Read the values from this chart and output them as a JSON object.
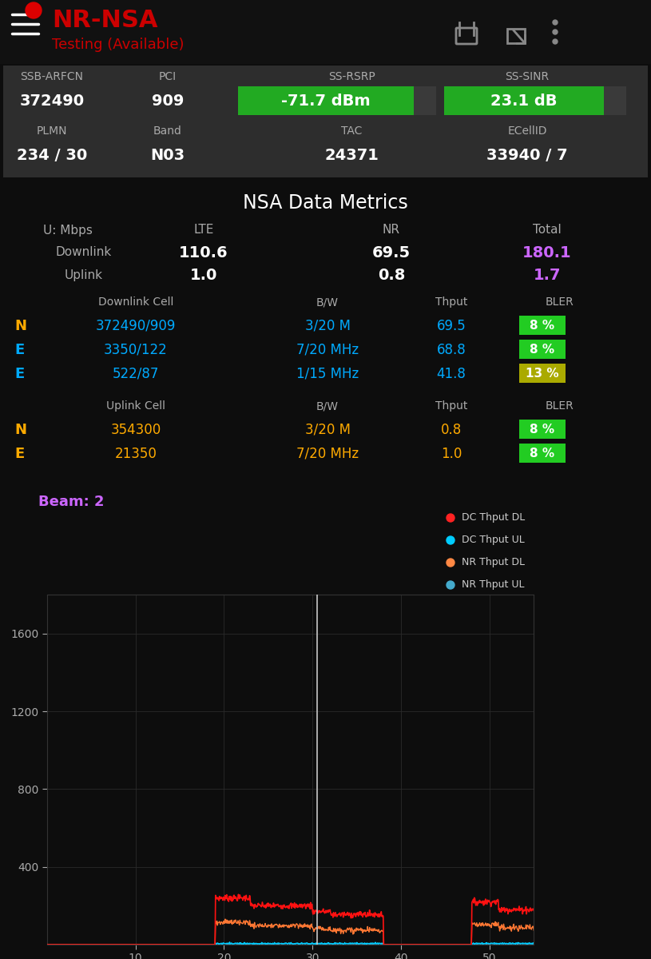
{
  "bg_color": "#0d0d0d",
  "panel_bg": "#2a2a2a",
  "title": "NR-NSA",
  "subtitle": "Testing (Available)",
  "title_color": "#cc0000",
  "subtitle_color": "#cc0000",
  "ssb_arfcn_label": "SSB-ARFCN",
  "ssb_arfcn_value": "372490",
  "pci_label": "PCI",
  "pci_value": "909",
  "ss_rsrp_label": "SS-RSRP",
  "ss_rsrp_value": "-71.7 dBm",
  "ss_rsrp_bg": "#22aa22",
  "ss_sinr_label": "SS-SINR",
  "ss_sinr_value": "23.1 dB",
  "ss_sinr_bg": "#22aa22",
  "plmn_label": "PLMN",
  "plmn_value": "234 / 30",
  "band_label": "Band",
  "band_value": "N03",
  "tac_label": "TAC",
  "tac_value": "24371",
  "ecellid_label": "ECellID",
  "ecellid_value": "33940 / 7",
  "section_title": "NSA Data Metrics",
  "col_headers": [
    "U: Mbps",
    "LTE",
    "NR",
    "Total"
  ],
  "downlink_label": "Downlink",
  "downlink_lte": "110.6",
  "downlink_nr": "69.5",
  "downlink_total": "180.1",
  "uplink_label": "Uplink",
  "uplink_lte": "1.0",
  "uplink_nr": "0.8",
  "uplink_total": "1.7",
  "total_color": "#cc66ff",
  "dl_cell_header": [
    "Downlink Cell",
    "B/W",
    "Thput",
    "BLER"
  ],
  "dl_cells": [
    {
      "prefix": "N",
      "prefix_color": "#ffaa00",
      "cell": "372490/909",
      "bw": "3/20 M",
      "thput": "69.5",
      "bler_pct": "8 %",
      "bler_color": "#22cc22"
    },
    {
      "prefix": "E",
      "prefix_color": "#00aaff",
      "cell": "3350/122",
      "bw": "7/20 MHz",
      "thput": "68.8",
      "bler_pct": "8 %",
      "bler_color": "#22cc22"
    },
    {
      "prefix": "E",
      "prefix_color": "#00aaff",
      "cell": "522/87",
      "bw": "1/15 MHz",
      "thput": "41.8",
      "bler_pct": "13 %",
      "bler_color": "#aaaa00"
    }
  ],
  "ul_cell_header": [
    "Uplink Cell",
    "B/W",
    "Thput",
    "BLER"
  ],
  "ul_cells": [
    {
      "prefix": "N",
      "prefix_color": "#ffaa00",
      "cell": "354300",
      "bw": "3/20 M",
      "thput": "0.8",
      "bler_pct": "8 %",
      "bler_color": "#22cc22"
    },
    {
      "prefix": "E",
      "prefix_color": "#ffaa00",
      "cell": "21350",
      "bw": "7/20 MHz",
      "thput": "1.0",
      "bler_pct": "8 %",
      "bler_color": "#22cc22"
    }
  ],
  "beam_label": "Beam: 2",
  "beam_color": "#cc66ff",
  "chart_yticks": [
    400,
    800,
    1200,
    1600
  ],
  "chart_xticks": [
    10,
    20,
    30,
    40,
    50
  ],
  "legend_items": [
    {
      "label": "DC Thput DL",
      "color": "#ff2222"
    },
    {
      "label": "DC Thput UL",
      "color": "#00ccff"
    },
    {
      "label": "NR Thput DL",
      "color": "#ff8844"
    },
    {
      "label": "NR Thput UL",
      "color": "#44aacc"
    }
  ],
  "cell_color": "#00aaff",
  "bw_color": "#00aaff",
  "thput_color": "#00aaff",
  "white_color": "#ffffff",
  "gray_color": "#888888",
  "label_color": "#aaaaaa"
}
